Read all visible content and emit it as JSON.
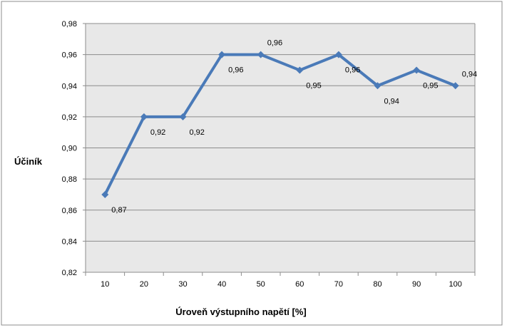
{
  "chart_data": {
    "type": "line",
    "categories": [
      "10",
      "20",
      "30",
      "40",
      "50",
      "60",
      "70",
      "80",
      "90",
      "100"
    ],
    "values": [
      0.87,
      0.92,
      0.92,
      0.96,
      0.96,
      0.95,
      0.96,
      0.94,
      0.95,
      0.94
    ],
    "data_labels": [
      "0,87",
      "0,92",
      "0,92",
      "0,96",
      "0,96",
      "0,95",
      "0,96",
      "0,94",
      "0,95",
      "0,94"
    ],
    "xlabel": "Úroveň výstupního napětí [%]",
    "ylabel": "Účiník",
    "ylim": [
      0.82,
      0.98
    ],
    "yticks": [
      "0,82",
      "0,84",
      "0,86",
      "0,88",
      "0,90",
      "0,92",
      "0,94",
      "0,96",
      "0,98"
    ],
    "grid": true,
    "legend": "none",
    "colors": {
      "line": "#4a7ab8",
      "plot_background": "#e8e8e8",
      "grid": "#8c8c8c",
      "border": "#8c8c8c"
    }
  }
}
